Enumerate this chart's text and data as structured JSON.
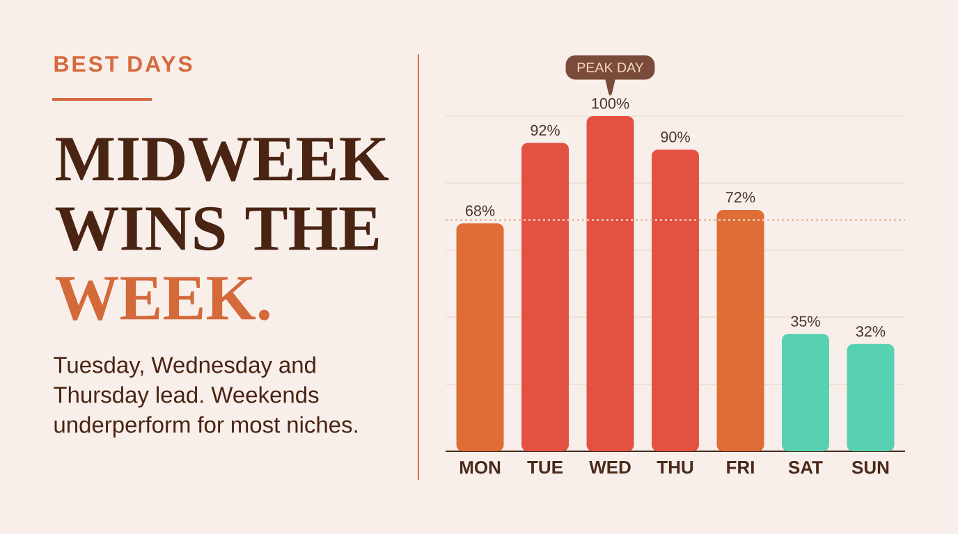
{
  "chart_data": {
    "type": "bar",
    "title": "MIDWEEK WINS THE WEEK.",
    "subtitle": "Tuesday, Wednesday and Thursday lead. Weekends underperform for most niches.",
    "annotations": [
      "BEST DAYS",
      "PEAK DAY"
    ],
    "categories": [
      "MON",
      "TUE",
      "WED",
      "THU",
      "FRI",
      "SAT",
      "SUN"
    ],
    "values": [
      68,
      92,
      100,
      90,
      72,
      35,
      32
    ],
    "colors": [
      "#e06c36",
      "#e35143",
      "#e35143",
      "#e35143",
      "#e06c36",
      "#58d0b2",
      "#58d0b2"
    ],
    "value_labels": [
      "68%",
      "92%",
      "100%",
      "90%",
      "72%",
      "35%",
      "32%"
    ],
    "ylim": [
      0,
      100
    ],
    "yticks": [
      {
        "value": 0,
        "label": null
      },
      {
        "value": 20,
        "label": null
      },
      {
        "value": 40,
        "label": null
      },
      {
        "value": 60,
        "label": null
      },
      {
        "value": 80,
        "label": null
      },
      {
        "value": 100,
        "label": null
      }
    ],
    "grid": "y",
    "tick_labels": "x",
    "ref_lines": [
      {
        "axis": "y",
        "value": 69,
        "color": "#e8c2aa",
        "line_style": "dotted"
      }
    ]
  }
}
